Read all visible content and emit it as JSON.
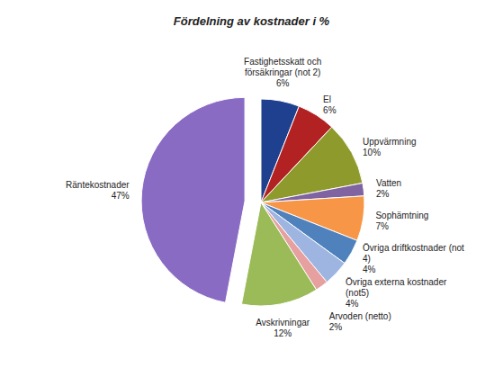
{
  "chart_data": {
    "type": "pie",
    "title": "Fördelning av kostnader i %",
    "categories": [
      "Fastighetsskatt och försäkringar (not 2)",
      "El",
      "Uppvärmning",
      "Vatten",
      "Sophämtning",
      "Övriga driftkostnader (not 4)",
      "Övriga externa kostnader (not5)",
      "Arvoden (netto)",
      "Avskrivningar",
      "Räntekostnader"
    ],
    "values": [
      6,
      6,
      10,
      2,
      7,
      4,
      4,
      2,
      12,
      47
    ],
    "value_labels": [
      "6%",
      "6%",
      "10%",
      "2%",
      "7%",
      "4%",
      "4%",
      "2%",
      "12%",
      "47%"
    ],
    "colors": [
      "#1f3f8f",
      "#b22222",
      "#8f9a2c",
      "#8064a2",
      "#f79646",
      "#4f81bd",
      "#9db5e0",
      "#e6a0a0",
      "#9bbb59",
      "#8a6bc4"
    ],
    "data_labels": true
  }
}
